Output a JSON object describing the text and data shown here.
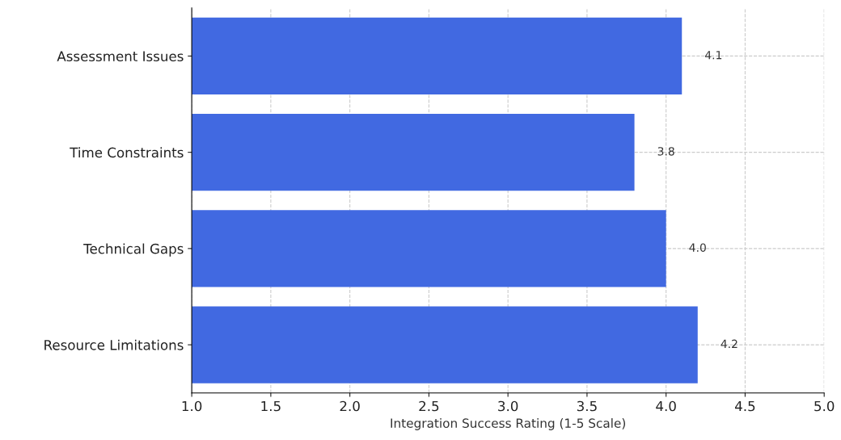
{
  "chart_data": {
    "type": "bar",
    "orientation": "horizontal",
    "xlabel": "Integration Success Rating (1-5 Scale)",
    "categories": [
      "Assessment Issues",
      "Time Constraints",
      "Technical Gaps",
      "Resource Limitations"
    ],
    "values": [
      4.1,
      3.8,
      4.0,
      4.2
    ],
    "value_labels": [
      "4.1",
      "3.8",
      "4.0",
      "4.2"
    ],
    "color": "#4169e1",
    "xlim": [
      1.0,
      5.0
    ],
    "xticks": [
      {
        "value": 1.0,
        "label": "1.0"
      },
      {
        "value": 1.5,
        "label": "1.5"
      },
      {
        "value": 2.0,
        "label": "2.0"
      },
      {
        "value": 2.5,
        "label": "2.5"
      },
      {
        "value": 3.0,
        "label": "3.0"
      },
      {
        "value": 3.5,
        "label": "3.5"
      },
      {
        "value": 4.0,
        "label": "4.0"
      },
      {
        "value": 4.5,
        "label": "4.5"
      },
      {
        "value": 5.0,
        "label": "5.0"
      }
    ],
    "grid": true
  }
}
